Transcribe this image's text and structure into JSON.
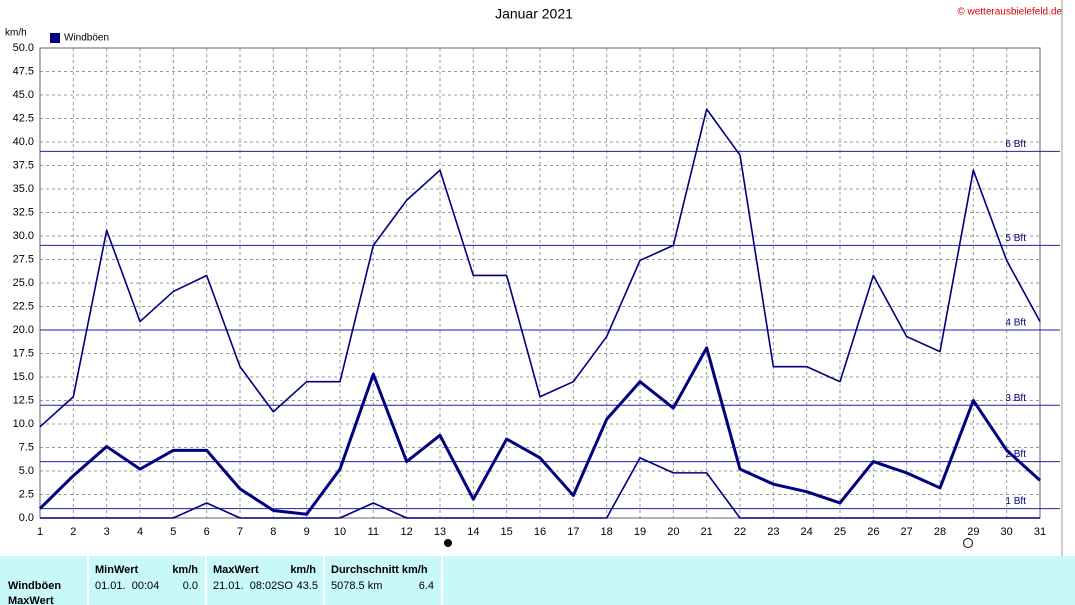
{
  "chart_data": {
    "type": "line",
    "title": "Januar 2021",
    "credit": "© wetterausbielefeld.de",
    "y_label": "km/h",
    "legend": "Windböen",
    "legend_color": "#000080",
    "x": [
      1,
      2,
      3,
      4,
      5,
      6,
      7,
      8,
      9,
      10,
      11,
      12,
      13,
      14,
      15,
      16,
      17,
      18,
      19,
      20,
      21,
      22,
      23,
      24,
      25,
      26,
      27,
      28,
      29,
      30,
      31
    ],
    "xlim": [
      1,
      31
    ],
    "xticks": [
      1,
      2,
      3,
      4,
      5,
      6,
      7,
      8,
      9,
      10,
      11,
      12,
      13,
      14,
      15,
      16,
      17,
      18,
      19,
      20,
      21,
      22,
      23,
      24,
      25,
      26,
      27,
      28,
      29,
      30,
      31
    ],
    "ylim": [
      0,
      50
    ],
    "yticks": [
      {
        "value": 0,
        "label": "0.0"
      },
      2.5,
      {
        "value": 5,
        "label": "5.0"
      },
      7.5,
      {
        "value": 10,
        "label": "10.0"
      },
      12.5,
      {
        "value": 15,
        "label": "15.0"
      },
      17.5,
      {
        "value": 20,
        "label": "20.0"
      },
      22.5,
      {
        "value": 25,
        "label": "25.0"
      },
      27.5,
      {
        "value": 30,
        "label": "30.0"
      },
      32.5,
      {
        "value": 35,
        "label": "35.0"
      },
      37.5,
      {
        "value": 40,
        "label": "40.0"
      },
      42.5,
      {
        "value": 45,
        "label": "45.0"
      },
      47.5,
      {
        "value": 50,
        "label": "50.0"
      }
    ],
    "grid": true,
    "series": [
      {
        "color": "#000080",
        "thick": false,
        "values": [
          9.7,
          12.9,
          30.6,
          20.9,
          24.1,
          25.8,
          16.1,
          11.3,
          14.5,
          14.5,
          29.0,
          33.8,
          37.0,
          25.8,
          25.8,
          12.9,
          14.5,
          19.3,
          27.4,
          29.0,
          43.5,
          38.6,
          16.1,
          16.1,
          14.5,
          25.8,
          19.3,
          17.7,
          37.0,
          27.4,
          20.9
        ]
      },
      {
        "color": "#000080",
        "thick": true,
        "values": [
          1.0,
          4.5,
          7.6,
          5.2,
          7.2,
          7.2,
          3.1,
          0.8,
          0.4,
          5.2,
          15.3,
          6.0,
          8.8,
          2.0,
          8.4,
          6.4,
          2.4,
          10.5,
          14.5,
          11.7,
          18.1,
          5.2,
          3.6,
          2.8,
          1.6,
          6.0,
          4.8,
          3.2,
          12.5,
          7.2,
          4.0
        ]
      },
      {
        "color": "#000080",
        "thick": false,
        "values": [
          0,
          0,
          0,
          0,
          0,
          1.6,
          0,
          0,
          0,
          0,
          1.6,
          0,
          0,
          0,
          0,
          0,
          0,
          0,
          6.4,
          4.8,
          4.8,
          0,
          0,
          0,
          0,
          0,
          0,
          0,
          0,
          0,
          0
        ]
      }
    ],
    "reference_lines": [
      {
        "value": 1,
        "label": "1 Bft"
      },
      {
        "value": 6,
        "label": "2 Bft"
      },
      {
        "value": 12,
        "label": "3 Bft"
      },
      {
        "value": 20,
        "label": "4 Bft"
      },
      {
        "value": 29,
        "label": "5 Bft"
      },
      {
        "value": 39,
        "label": "6 Bft"
      }
    ]
  },
  "table": {
    "row_labels": [
      "Windböen",
      "MaxWert"
    ],
    "columns": [
      {
        "header": "MinWert",
        "unit": "km/h",
        "cells": [
          "01.01.  00:04",
          "0.0"
        ]
      },
      {
        "header": "MaxWert",
        "unit": "km/h",
        "cells": [
          "21.01.  08:02",
          "SO",
          "43.5"
        ]
      },
      {
        "header": "Durchschnitt km/h",
        "cells": [
          "5078.5 km",
          "6.4"
        ]
      }
    ]
  }
}
